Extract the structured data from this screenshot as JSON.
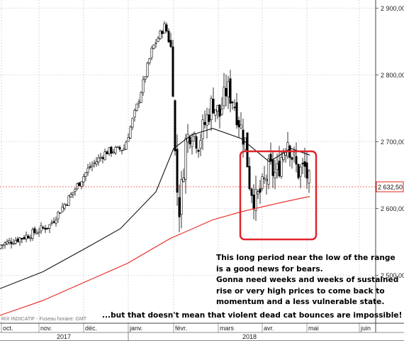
{
  "chart_data": {
    "type": "candlestick",
    "title": "",
    "price_label": "2 632,50",
    "y_axis": {
      "ticks": [
        {
          "value": 2500,
          "label": "2 500,00"
        },
        {
          "value": 2600,
          "label": "2 600,00"
        },
        {
          "value": 2700,
          "label": "2 700,00"
        },
        {
          "value": 2800,
          "label": "2 800,00"
        },
        {
          "value": 2900,
          "label": "2 900,00"
        }
      ]
    },
    "x_axis": {
      "month_labels": [
        "oct.",
        "nov.",
        "déc.",
        "janv.",
        "févr.",
        "mars",
        "avr.",
        "mai",
        "juin"
      ],
      "year_labels": [
        "2017",
        "2018"
      ]
    },
    "last_price": 2632.5,
    "series": [
      {
        "name": "",
        "color": "#000000",
        "values": [
          2480,
          2520,
          2560,
          2600,
          2660,
          2700,
          2710,
          2705,
          2700,
          2690,
          2680
        ]
      },
      {
        "name": "",
        "color": "#e8241c",
        "values": [
          2440,
          2470,
          2510,
          2560,
          2580,
          2600,
          2615
        ]
      }
    ],
    "grid": true,
    "highlight_box_color": "#e0242c",
    "annotation": [
      "This long period near the low of the range",
      "is a good news for bears.",
      "Gonna need weeks and weeks of sustained",
      "rise or very high prices to come back to",
      "momentum and a less vulnerable state."
    ],
    "annotation_bottom": "...but that doesn't mean that violent dead cat bounces are impossible!",
    "footer_note": "RIX INDICATIF - Fuseau horaire: GMT"
  }
}
